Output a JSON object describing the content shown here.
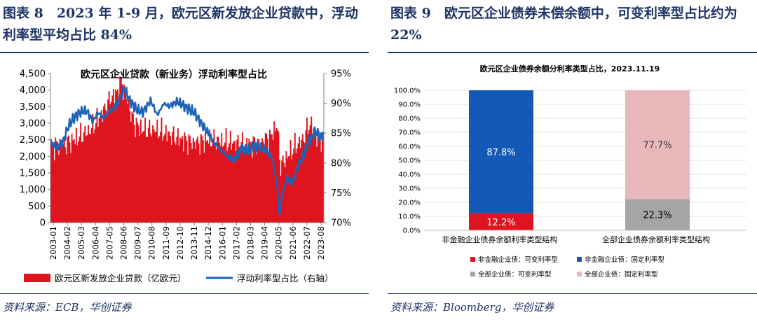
{
  "left": {
    "figure_title": "图表 8　2023 年 1-9 月，欧元区新发放企业贷款中，浮动利率型平均占比 84%",
    "source": "资料来源：ECB，华创证券",
    "colors": {
      "bar": "#e0141e",
      "line": "#1d64b8"
    },
    "chart_data": {
      "type": "bar",
      "title": "欧元区企业贷款（新业务）浮动利率型占比",
      "x_tick_labels": [
        "2003-01",
        "2004-02",
        "2005-03",
        "2006-04",
        "2007-05",
        "2008-06",
        "2009-07",
        "2010-08",
        "2011-09",
        "2012-10",
        "2013-11",
        "2014-12",
        "2016-01",
        "2017-02",
        "2018-03",
        "2019-04",
        "2020-05",
        "2021-06",
        "2022-07",
        "2023-08"
      ],
      "y_left_ticks": [
        "0",
        "500",
        "1,000",
        "1,500",
        "2,000",
        "2,500",
        "3,000",
        "3,500",
        "4,000",
        "4,500"
      ],
      "y_left_range": [
        0,
        4500
      ],
      "y_right_ticks": [
        "70%",
        "75%",
        "80%",
        "85%",
        "90%",
        "95%"
      ],
      "y_right_range": [
        70,
        95
      ],
      "series": [
        {
          "name": "欧元区新发放企业贷款（亿欧元）",
          "type": "bar",
          "axis": "left",
          "anchors": [
            [
              2003.0,
              2300
            ],
            [
              2004.0,
              2350
            ],
            [
              2005.0,
              2550
            ],
            [
              2006.0,
              2800
            ],
            [
              2007.0,
              3350
            ],
            [
              2007.6,
              3800
            ],
            [
              2008.0,
              3900
            ],
            [
              2008.35,
              4250
            ],
            [
              2008.8,
              3700
            ],
            [
              2009.3,
              3000
            ],
            [
              2010.0,
              2800
            ],
            [
              2011.0,
              2800
            ],
            [
              2012.0,
              2650
            ],
            [
              2013.0,
              2500
            ],
            [
              2014.0,
              2400
            ],
            [
              2015.0,
              2500
            ],
            [
              2016.0,
              2450
            ],
            [
              2017.0,
              2400
            ],
            [
              2018.0,
              2350
            ],
            [
              2019.0,
              2400
            ],
            [
              2019.8,
              2600
            ],
            [
              2020.2,
              3000
            ],
            [
              2020.5,
              1700
            ],
            [
              2021.0,
              2000
            ],
            [
              2021.6,
              2300
            ],
            [
              2022.2,
              2500
            ],
            [
              2022.7,
              3000
            ],
            [
              2023.0,
              2750
            ],
            [
              2023.7,
              2450
            ]
          ]
        },
        {
          "name": "浮动利率型占比（右轴）",
          "type": "line",
          "axis": "right",
          "anchors": [
            [
              2003.0,
              83.5
            ],
            [
              2003.4,
              82.5
            ],
            [
              2003.9,
              83.5
            ],
            [
              2004.3,
              86.0
            ],
            [
              2004.7,
              87.5
            ],
            [
              2005.2,
              88.5
            ],
            [
              2005.7,
              88.8
            ],
            [
              2006.2,
              87.0
            ],
            [
              2006.6,
              88.5
            ],
            [
              2007.0,
              87.5
            ],
            [
              2007.4,
              88.5
            ],
            [
              2007.9,
              89.5
            ],
            [
              2008.3,
              91.0
            ],
            [
              2008.6,
              92.5
            ],
            [
              2009.0,
              90.5
            ],
            [
              2009.5,
              89.0
            ],
            [
              2010.0,
              88.5
            ],
            [
              2010.6,
              90.5
            ],
            [
              2011.1,
              88.0
            ],
            [
              2011.6,
              90.0
            ],
            [
              2012.0,
              89.5
            ],
            [
              2012.6,
              90.3
            ],
            [
              2013.2,
              89.5
            ],
            [
              2013.9,
              88.5
            ],
            [
              2014.5,
              86.5
            ],
            [
              2015.0,
              85.0
            ],
            [
              2015.4,
              83.5
            ],
            [
              2016.0,
              82.0
            ],
            [
              2016.5,
              81.0
            ],
            [
              2017.0,
              80.5
            ],
            [
              2017.5,
              82.5
            ],
            [
              2018.0,
              82.0
            ],
            [
              2018.5,
              83.0
            ],
            [
              2019.0,
              82.5
            ],
            [
              2019.5,
              82.0
            ],
            [
              2019.9,
              80.5
            ],
            [
              2020.25,
              76.0
            ],
            [
              2020.4,
              71.0
            ],
            [
              2020.7,
              75.5
            ],
            [
              2021.0,
              77.5
            ],
            [
              2021.4,
              76.5
            ],
            [
              2021.8,
              79.5
            ],
            [
              2022.2,
              81.0
            ],
            [
              2022.6,
              83.5
            ],
            [
              2022.9,
              84.5
            ],
            [
              2023.2,
              85.5
            ],
            [
              2023.5,
              84.0
            ],
            [
              2023.75,
              85.0
            ]
          ]
        }
      ],
      "legend_position": "bottom"
    }
  },
  "right": {
    "figure_title": "图表 9　欧元区企业债券未偿余额中，可变利率型占比约为 22%",
    "source": "资料来源：Bloomberg，华创证券",
    "colors": {
      "nonfin_var": "#e0141e",
      "nonfin_fixed": "#1559b8",
      "all_var": "#a5a5a5",
      "all_fixed": "#e8b8ba"
    },
    "chart_data": {
      "type": "bar",
      "stacked": true,
      "title": "欧元区企业债券余额分利率类型占比，2023.11.19",
      "categories": [
        "非金融企业债券余额利率类型结构",
        "全部企业债券余额利率类型结构"
      ],
      "y_ticks": [
        "0.0%",
        "10.0%",
        "20.0%",
        "30.0%",
        "40.0%",
        "50.0%",
        "60.0%",
        "70.0%",
        "80.0%",
        "90.0%",
        "100.0%"
      ],
      "ylim": [
        0,
        100
      ],
      "series": [
        {
          "name": "非金融企业债：可变利率型",
          "category": 0,
          "value": 12.2,
          "label": "12.2%"
        },
        {
          "name": "非金融企业债：固定利率型",
          "category": 0,
          "value": 87.8,
          "label": "87.8%"
        },
        {
          "name": "全部企业债：可变利率型",
          "category": 1,
          "value": 22.3,
          "label": "22.3%"
        },
        {
          "name": "全部企业债：固定利率型",
          "category": 1,
          "value": 77.7,
          "label": "77.7%"
        }
      ],
      "legend_position": "bottom"
    }
  }
}
